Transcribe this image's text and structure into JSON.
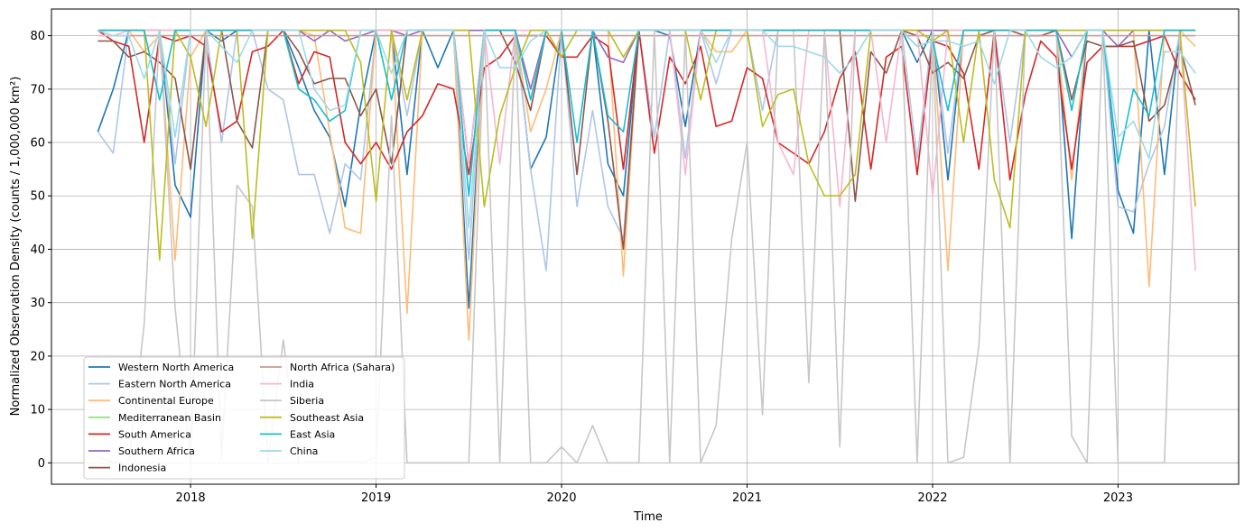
{
  "chart_data": {
    "type": "line",
    "title": "",
    "xlabel": "Time",
    "ylabel": "Normalized Observation Density (counts / 1,000,000 km²)",
    "xlim": [
      2017.25,
      2023.65
    ],
    "ylim": [
      -4,
      85
    ],
    "xticks": [
      2018,
      2019,
      2020,
      2021,
      2022,
      2023
    ],
    "xtick_labels": [
      "2018",
      "2019",
      "2020",
      "2021",
      "2022",
      "2023"
    ],
    "yticks": [
      0,
      10,
      20,
      30,
      40,
      50,
      60,
      70,
      80
    ],
    "ytick_labels": [
      "0",
      "10",
      "20",
      "30",
      "40",
      "50",
      "60",
      "70",
      "80"
    ],
    "grid": true,
    "legend_position": "lower-left",
    "legend_columns": 2,
    "x": [
      2017.5,
      2017.583,
      2017.667,
      2017.75,
      2017.833,
      2017.917,
      2018.0,
      2018.083,
      2018.167,
      2018.25,
      2018.333,
      2018.417,
      2018.5,
      2018.583,
      2018.667,
      2018.75,
      2018.833,
      2018.917,
      2019.0,
      2019.083,
      2019.167,
      2019.25,
      2019.333,
      2019.417,
      2019.5,
      2019.583,
      2019.667,
      2019.75,
      2019.833,
      2019.917,
      2020.0,
      2020.083,
      2020.167,
      2020.25,
      2020.333,
      2020.417,
      2020.5,
      2020.583,
      2020.667,
      2020.75,
      2020.833,
      2020.917,
      2021.0,
      2021.083,
      2021.167,
      2021.25,
      2021.333,
      2021.417,
      2021.5,
      2021.583,
      2021.667,
      2021.75,
      2021.833,
      2021.917,
      2022.0,
      2022.083,
      2022.167,
      2022.25,
      2022.333,
      2022.417,
      2022.5,
      2022.583,
      2022.667,
      2022.75,
      2022.833,
      2022.917,
      2023.0,
      2023.083,
      2023.167,
      2023.25,
      2023.333,
      2023.417
    ],
    "series": [
      {
        "name": "Western North America",
        "color": "#1f77b4",
        "values": [
          62,
          70,
          81,
          81,
          81,
          52,
          46,
          81,
          79,
          81,
          81,
          81,
          81,
          74,
          66,
          61,
          48,
          67,
          81,
          81,
          54,
          81,
          74,
          81,
          29,
          81,
          81,
          81,
          55,
          61,
          81,
          81,
          81,
          56,
          50,
          81,
          81,
          80,
          63,
          81,
          81,
          81,
          81,
          81,
          81,
          81,
          81,
          81,
          81,
          81,
          81,
          81,
          81,
          75,
          81,
          53,
          81,
          81,
          81,
          81,
          81,
          81,
          81,
          42,
          81,
          81,
          51,
          43,
          81,
          54,
          81,
          81
        ]
      },
      {
        "name": "Eastern North America",
        "color": "#aec7e8",
        "values": [
          62,
          58,
          81,
          81,
          81,
          56,
          81,
          81,
          60,
          81,
          81,
          70,
          68,
          54,
          54,
          43,
          56,
          53,
          81,
          81,
          65,
          81,
          81,
          81,
          38,
          81,
          81,
          81,
          55,
          36,
          81,
          48,
          66,
          48,
          42,
          81,
          61,
          81,
          57,
          81,
          71,
          81,
          81,
          66,
          81,
          81,
          81,
          81,
          81,
          81,
          81,
          81,
          81,
          57,
          81,
          58,
          81,
          81,
          81,
          60,
          81,
          81,
          81,
          81,
          81,
          81,
          48,
          47,
          56,
          63,
          81,
          81
        ]
      },
      {
        "name": "Continental Europe",
        "color": "#ffbb78",
        "values": [
          81,
          81,
          81,
          77,
          80,
          38,
          76,
          81,
          81,
          81,
          81,
          81,
          81,
          81,
          80,
          62,
          44,
          43,
          81,
          81,
          28,
          81,
          81,
          81,
          23,
          81,
          81,
          81,
          62,
          70,
          81,
          81,
          81,
          81,
          35,
          81,
          81,
          81,
          81,
          81,
          77,
          77,
          81,
          81,
          81,
          81,
          81,
          81,
          81,
          81,
          81,
          81,
          81,
          81,
          81,
          36,
          81,
          81,
          81,
          81,
          81,
          81,
          81,
          53,
          81,
          81,
          81,
          81,
          33,
          81,
          81,
          78
        ]
      },
      {
        "name": "Mediterranean Basin",
        "color": "#98df8a",
        "values": [
          81,
          81,
          81,
          81,
          81,
          81,
          81,
          81,
          81,
          81,
          81,
          81,
          81,
          81,
          81,
          81,
          81,
          81,
          81,
          81,
          81,
          81,
          81,
          81,
          81,
          81,
          81,
          81,
          81,
          81,
          81,
          81,
          81,
          81,
          81,
          81,
          81,
          81,
          81,
          81,
          81,
          81,
          81,
          81,
          81,
          81,
          81,
          81,
          81,
          81,
          81,
          81,
          81,
          81,
          81,
          81,
          81,
          81,
          81,
          81,
          81,
          81,
          81,
          81,
          81,
          81,
          81,
          81,
          81,
          81,
          81,
          81
        ]
      },
      {
        "name": "South America",
        "color": "#d62728",
        "values": [
          81,
          79,
          78,
          60,
          80,
          79,
          80,
          78,
          62,
          64,
          77,
          78,
          81,
          71,
          77,
          76,
          60,
          56,
          60,
          55,
          62,
          65,
          71,
          70,
          54,
          74,
          76,
          80,
          80,
          80,
          76,
          76,
          80,
          78,
          55,
          81,
          58,
          76,
          71,
          78,
          63,
          64,
          74,
          72,
          60,
          58,
          56,
          62,
          72,
          77,
          55,
          76,
          78,
          54,
          79,
          78,
          73,
          55,
          81,
          53,
          69,
          79,
          76,
          55,
          75,
          78,
          78,
          78,
          79,
          80,
          73,
          68
        ]
      },
      {
        "name": "Southern Africa",
        "color": "#9467bd",
        "values": [
          81,
          81,
          81,
          81,
          81,
          81,
          81,
          81,
          81,
          81,
          81,
          81,
          81,
          81,
          79,
          81,
          79,
          80,
          81,
          81,
          80,
          81,
          81,
          81,
          81,
          81,
          81,
          81,
          70,
          81,
          81,
          81,
          81,
          76,
          75,
          81,
          81,
          81,
          81,
          81,
          81,
          81,
          81,
          81,
          81,
          81,
          81,
          81,
          81,
          81,
          81,
          81,
          81,
          81,
          81,
          81,
          81,
          81,
          81,
          81,
          81,
          81,
          81,
          76,
          81,
          81,
          78,
          81,
          81,
          81,
          81,
          81
        ]
      },
      {
        "name": "Indonesia",
        "color": "#8c564b",
        "values": [
          79,
          79,
          76,
          77,
          75,
          72,
          55,
          81,
          81,
          64,
          59,
          81,
          81,
          77,
          71,
          72,
          72,
          65,
          70,
          56,
          81,
          81,
          81,
          81,
          56,
          81,
          81,
          75,
          66,
          81,
          81,
          54,
          81,
          64,
          40,
          81,
          81,
          81,
          81,
          81,
          81,
          81,
          81,
          81,
          81,
          81,
          81,
          81,
          81,
          49,
          77,
          73,
          81,
          80,
          73,
          75,
          72,
          80,
          81,
          81,
          80,
          80,
          81,
          68,
          79,
          78,
          78,
          79,
          64,
          67,
          78,
          67
        ]
      },
      {
        "name": "North Africa (Sahara)",
        "color": "#c49c94",
        "values": [
          80,
          80,
          80,
          80,
          80,
          80,
          80,
          80,
          80,
          80,
          80,
          80,
          80,
          80,
          80,
          80,
          80,
          80,
          80,
          80,
          80,
          80,
          80,
          80,
          80,
          80,
          80,
          80,
          80,
          80,
          80,
          80,
          80,
          80,
          80,
          80,
          80,
          80,
          80,
          80,
          80,
          80,
          80,
          80,
          80,
          80,
          80,
          80,
          80,
          80,
          80,
          80,
          80,
          80,
          80,
          80,
          80,
          80,
          80,
          80,
          80,
          80,
          80,
          80,
          80,
          80,
          80,
          80,
          80,
          80,
          80,
          80
        ]
      },
      {
        "name": "India",
        "color": "#f7b6d2",
        "values": [
          80,
          80,
          81,
          81,
          81,
          81,
          81,
          81,
          81,
          81,
          81,
          81,
          81,
          81,
          81,
          81,
          81,
          81,
          81,
          81,
          81,
          81,
          81,
          81,
          56,
          81,
          56,
          81,
          81,
          81,
          81,
          81,
          81,
          81,
          81,
          81,
          81,
          81,
          54,
          81,
          81,
          81,
          81,
          81,
          60,
          54,
          81,
          81,
          48,
          81,
          81,
          60,
          81,
          81,
          50,
          81,
          81,
          81,
          81,
          81,
          81,
          81,
          81,
          81,
          81,
          81,
          81,
          81,
          81,
          81,
          81,
          36
        ]
      },
      {
        "name": "Siberia",
        "color": "#c7c7c7",
        "values": [
          1,
          0,
          0,
          26,
          81,
          29,
          0,
          81,
          1,
          52,
          48,
          0,
          23,
          0,
          0,
          0,
          0,
          0,
          1,
          65,
          0,
          0,
          0,
          0,
          0,
          81,
          0,
          81,
          0,
          0,
          3,
          0,
          7,
          0,
          0,
          0,
          81,
          0,
          81,
          0,
          7,
          42,
          60,
          9,
          81,
          81,
          15,
          81,
          3,
          81,
          81,
          81,
          81,
          0,
          81,
          0,
          1,
          22,
          81,
          0,
          81,
          81,
          81,
          5,
          0,
          81,
          0,
          0,
          0,
          0,
          81,
          81
        ]
      },
      {
        "name": "Southeast Asia",
        "color": "#bcbd22",
        "values": [
          81,
          81,
          81,
          81,
          38,
          81,
          76,
          63,
          81,
          81,
          42,
          81,
          81,
          81,
          81,
          81,
          81,
          75,
          49,
          81,
          68,
          81,
          81,
          81,
          81,
          48,
          65,
          74,
          81,
          81,
          76,
          81,
          81,
          81,
          76,
          81,
          81,
          81,
          81,
          68,
          81,
          81,
          81,
          63,
          69,
          70,
          56,
          50,
          50,
          54,
          81,
          81,
          81,
          81,
          79,
          81,
          60,
          81,
          53,
          44,
          81,
          81,
          81,
          81,
          81,
          81,
          81,
          81,
          81,
          81,
          81,
          48
        ]
      },
      {
        "name": "East Asia",
        "color": "#17becf",
        "values": [
          81,
          81,
          81,
          81,
          68,
          81,
          81,
          81,
          81,
          81,
          81,
          81,
          81,
          70,
          68,
          64,
          66,
          81,
          81,
          68,
          81,
          81,
          81,
          81,
          50,
          81,
          81,
          81,
          68,
          81,
          81,
          60,
          81,
          65,
          62,
          81,
          81,
          81,
          81,
          81,
          81,
          81,
          81,
          81,
          81,
          81,
          81,
          81,
          81,
          81,
          81,
          81,
          81,
          78,
          79,
          66,
          81,
          81,
          81,
          81,
          81,
          81,
          81,
          66,
          81,
          81,
          56,
          70,
          65,
          81,
          81,
          81
        ]
      },
      {
        "name": "China",
        "color": "#9edae5",
        "values": [
          81,
          80,
          80,
          72,
          81,
          61,
          81,
          81,
          78,
          75,
          81,
          81,
          81,
          81,
          70,
          66,
          67,
          81,
          81,
          73,
          81,
          81,
          81,
          81,
          44,
          81,
          74,
          74,
          79,
          81,
          81,
          81,
          81,
          81,
          81,
          81,
          81,
          81,
          81,
          81,
          75,
          81,
          81,
          81,
          78,
          78,
          77,
          76,
          73,
          76,
          81,
          81,
          81,
          78,
          79,
          79,
          78,
          79,
          71,
          81,
          81,
          76,
          74,
          76,
          81,
          81,
          61,
          64,
          57,
          77,
          77,
          73
        ]
      }
    ]
  }
}
